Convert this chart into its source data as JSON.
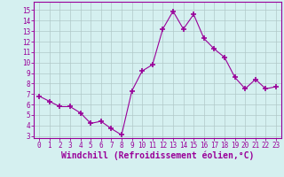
{
  "x": [
    0,
    1,
    2,
    3,
    4,
    5,
    6,
    7,
    8,
    9,
    10,
    11,
    12,
    13,
    14,
    15,
    16,
    17,
    18,
    19,
    20,
    21,
    22,
    23
  ],
  "y": [
    6.8,
    6.3,
    5.8,
    5.8,
    5.2,
    4.2,
    4.4,
    3.7,
    3.1,
    7.3,
    9.2,
    9.8,
    13.2,
    14.9,
    13.2,
    14.6,
    12.3,
    11.3,
    10.5,
    8.6,
    7.5,
    8.4,
    7.5,
    7.7
  ],
  "line_color": "#990099",
  "marker": "+",
  "marker_size": 4,
  "bg_color": "#d5f0f0",
  "grid_color": "#b0c8c8",
  "xlabel": "Windchill (Refroidissement éolien,°C)",
  "ylabel_ticks": [
    3,
    4,
    5,
    6,
    7,
    8,
    9,
    10,
    11,
    12,
    13,
    14,
    15
  ],
  "ylim": [
    2.8,
    15.8
  ],
  "xlim": [
    -0.5,
    23.5
  ],
  "xtick_labels": [
    "0",
    "1",
    "2",
    "3",
    "4",
    "5",
    "6",
    "7",
    "8",
    "9",
    "10",
    "11",
    "12",
    "13",
    "14",
    "15",
    "16",
    "17",
    "18",
    "19",
    "20",
    "21",
    "22",
    "23"
  ],
  "tick_color": "#990099",
  "spine_color": "#990099",
  "label_fontsize": 6.5,
  "tick_fontsize": 5.5,
  "xlabel_fontsize": 7.0
}
